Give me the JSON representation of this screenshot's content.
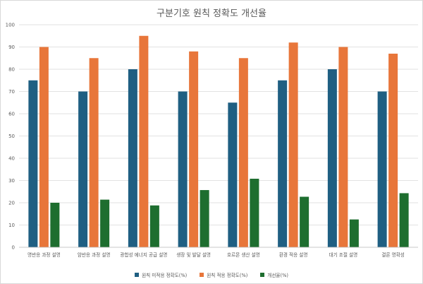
{
  "chart_data": {
    "type": "bar",
    "title": "구분기호 원칙 정확도 개선율",
    "categories": [
      "명반응 과정 설명",
      "암반응 과정 설명",
      "광합성 에너지 공급 설명",
      "생장 및 발달 설명",
      "호르몬 생산 설명",
      "환경 적응 설명",
      "대기 조절 설명",
      "결론 명확성"
    ],
    "series": [
      {
        "name": "원칙 미적용 정확도(%)",
        "color": "#1f5f82",
        "values": [
          75,
          70,
          80,
          70,
          65,
          75,
          80,
          70
        ]
      },
      {
        "name": "원칙 적용 정확도(%)",
        "color": "#e8763a",
        "values": [
          90,
          85,
          95,
          88,
          85,
          92,
          90,
          87
        ]
      },
      {
        "name": "개선율(%)",
        "color": "#1e6e2f",
        "values": [
          20,
          21.4,
          18.8,
          25.7,
          30.8,
          22.7,
          12.5,
          24.3
        ]
      }
    ],
    "ylim": [
      0,
      100
    ],
    "yticks": [
      0,
      10,
      20,
      30,
      40,
      50,
      60,
      70,
      80,
      90,
      100
    ],
    "grid": true,
    "legend_position": "bottom"
  }
}
